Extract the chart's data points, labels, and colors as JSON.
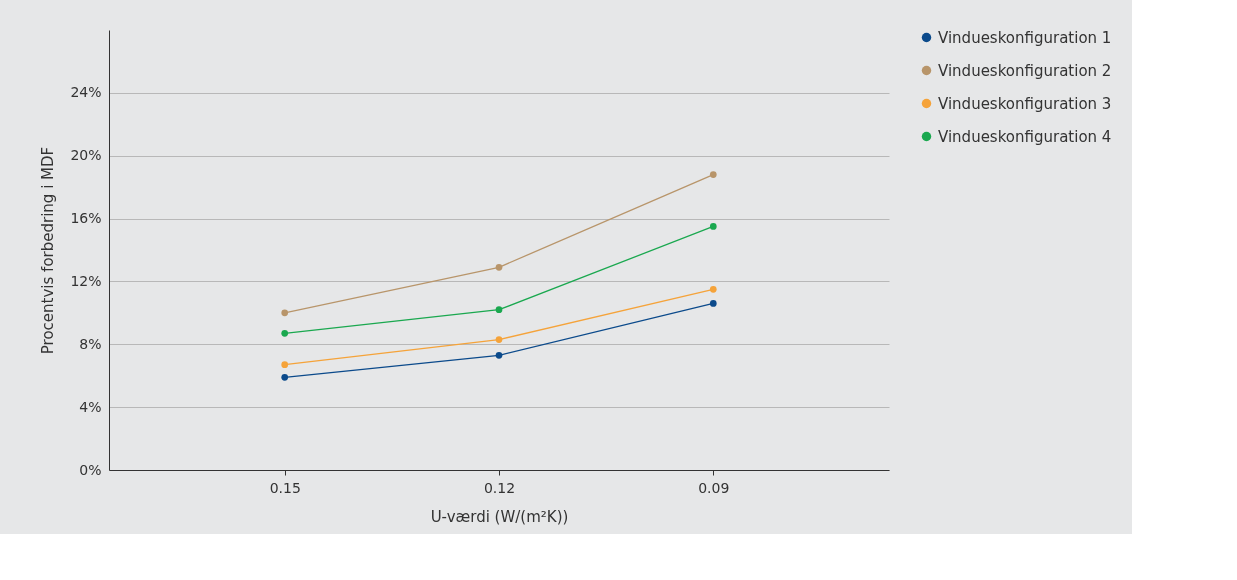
{
  "chart_data": {
    "type": "line",
    "xlabel": "U-værdi (W/(m²K))",
    "ylabel": "Procentvis forbedring i MDF",
    "categories": [
      "0.15",
      "0.12",
      "0.09"
    ],
    "series": [
      {
        "name": "Vindueskonfiguration 1",
        "color": "#0b4a8b",
        "values": [
          5.9,
          7.3,
          10.6
        ]
      },
      {
        "name": "Vindueskonfiguration 2",
        "color": "#b8956a",
        "values": [
          10.0,
          12.9,
          18.8
        ]
      },
      {
        "name": "Vindueskonfiguration 3",
        "color": "#f5a33a",
        "values": [
          6.7,
          8.3,
          11.5
        ]
      },
      {
        "name": "Vindueskonfiguration 4",
        "color": "#1aa84f",
        "values": [
          8.7,
          10.2,
          15.5
        ]
      }
    ],
    "ylim": [
      0,
      28
    ],
    "yticks": [
      {
        "value": 0,
        "label": "0%"
      },
      {
        "value": 4,
        "label": "4%"
      },
      {
        "value": 8,
        "label": "8%"
      },
      {
        "value": 12,
        "label": "12%"
      },
      {
        "value": 16,
        "label": "16%"
      },
      {
        "value": 20,
        "label": "20%"
      },
      {
        "value": 24,
        "label": "24%"
      }
    ],
    "grid": "y",
    "legend": "right",
    "marker": "circle",
    "line_style": "solid"
  }
}
